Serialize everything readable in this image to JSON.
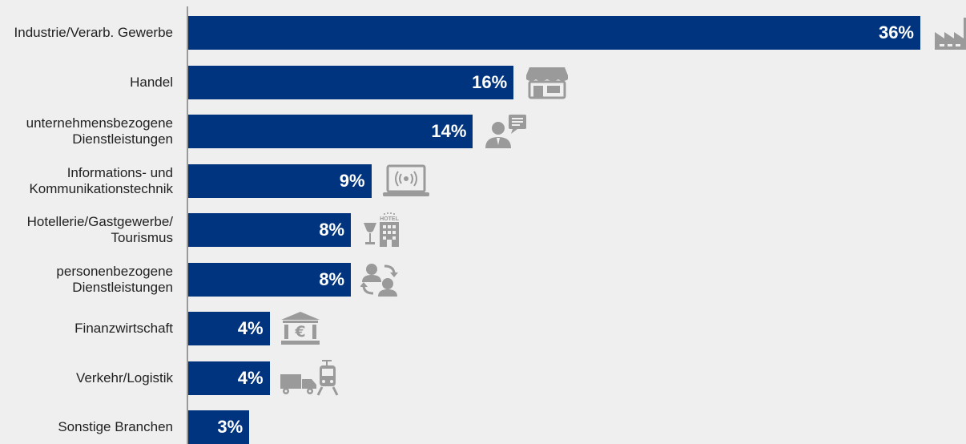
{
  "chart_data": {
    "type": "bar",
    "orientation": "horizontal",
    "categories": [
      "Industrie/Verarb. Gewerbe",
      "Handel",
      "unternehmensbezogene\nDienstleistungen",
      "Informations- und\nKommunikationstechnik",
      "Hotellerie/Gastgewerbe/\nTourismus",
      "personenbezogene\nDienstleistungen",
      "Finanzwirtschaft",
      "Verkehr/Logistik",
      "Sonstige Branchen"
    ],
    "values": [
      36,
      16,
      14,
      9,
      8,
      8,
      4,
      4,
      3
    ],
    "value_labels": [
      "36%",
      "16%",
      "14%",
      "9%",
      "8%",
      "8%",
      "4%",
      "4%",
      "3%"
    ],
    "icons": [
      "factory-icon",
      "shop-icon",
      "business-person-icon",
      "laptop-wifi-icon",
      "hotel-icon",
      "people-exchange-icon",
      "bank-euro-icon",
      "truck-train-icon",
      ""
    ],
    "xlim": [
      0,
      36
    ],
    "bar_color": "#00347f",
    "icon_color": "#9a9a9a",
    "grid": false,
    "legend": "none"
  }
}
